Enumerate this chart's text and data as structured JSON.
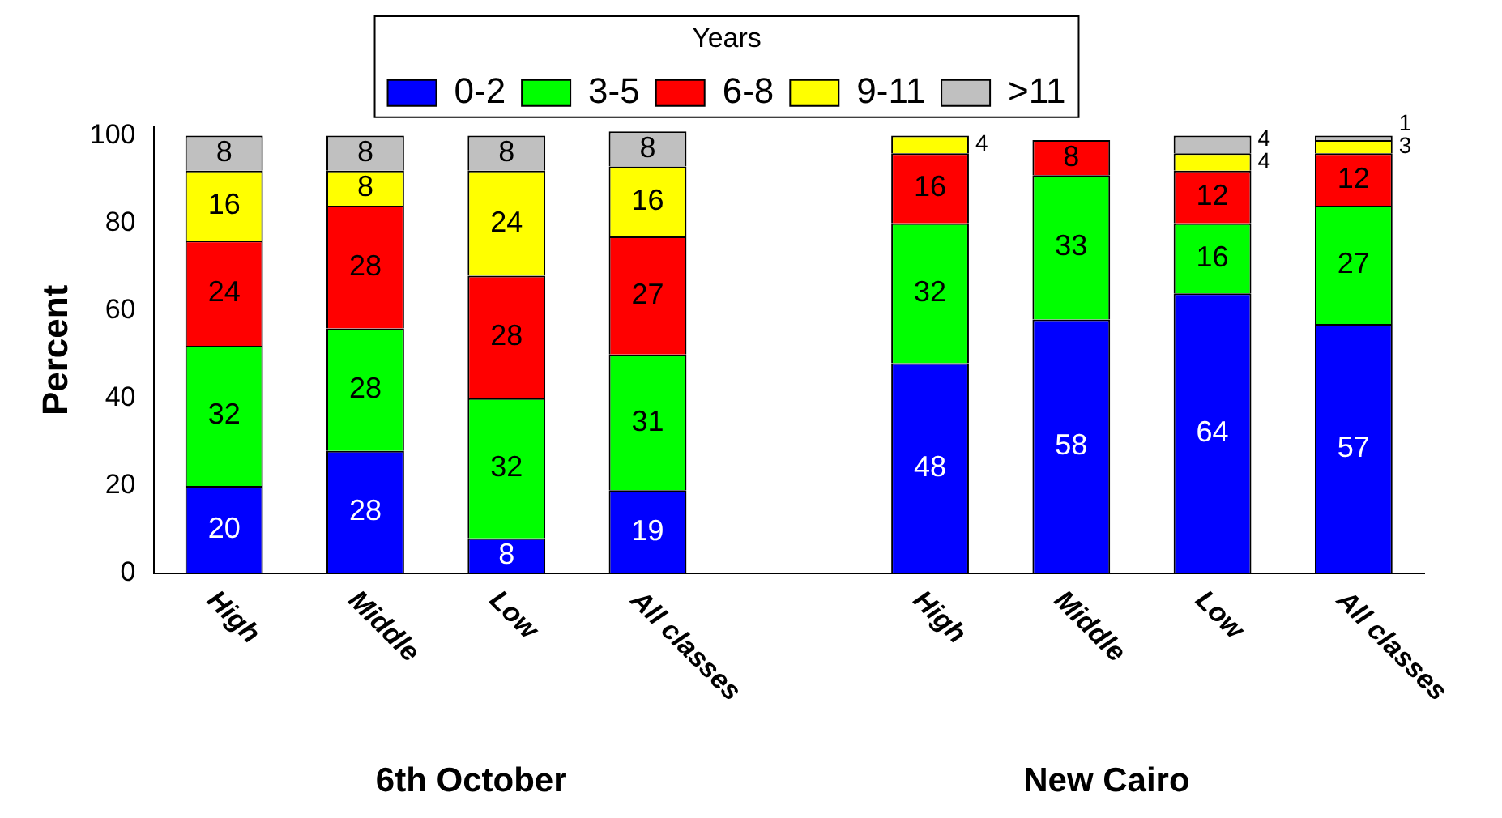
{
  "chart_data": {
    "type": "bar",
    "stacked": true,
    "ylabel": "Percent",
    "legend_title": "Years",
    "legend": "top",
    "data_labels": true,
    "categories": [
      "High",
      "Middle",
      "Low",
      "All classes",
      null,
      "High",
      "Middle",
      "Low",
      "All classes"
    ],
    "series": [
      {
        "name": "0-2",
        "color": "#0000ff",
        "values": [
          20,
          28,
          8,
          19,
          null,
          48,
          58,
          64,
          57
        ]
      },
      {
        "name": "3-5",
        "color": "#00ff00",
        "values": [
          32,
          28,
          32,
          31,
          null,
          32,
          33,
          16,
          27
        ]
      },
      {
        "name": "6-8",
        "color": "#ff0000",
        "values": [
          24,
          28,
          28,
          27,
          null,
          16,
          8,
          12,
          12
        ]
      },
      {
        "name": "9-11",
        "color": "#ffff00",
        "values": [
          16,
          8,
          24,
          16,
          null,
          4,
          null,
          4,
          3
        ]
      },
      {
        "name": ">11",
        "color": "#c0c0c0",
        "values": [
          8,
          8,
          8,
          8,
          null,
          null,
          null,
          4,
          1
        ]
      }
    ],
    "ylim": [
      0,
      102
    ],
    "yticks": [
      0,
      20,
      40,
      60,
      80,
      100
    ],
    "grid": false,
    "annotations": [
      "6th October",
      "New Cairo"
    ]
  }
}
